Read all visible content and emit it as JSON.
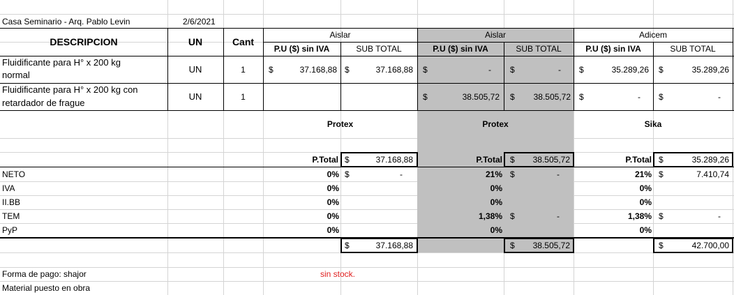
{
  "header": {
    "project": "Casa Seminario - Arq. Pablo Levin",
    "date": "2/6/2021"
  },
  "columns": {
    "descripcion": "DESCRIPCION",
    "un": "UN",
    "cant": "Cant",
    "pu": "P.U ($) sin IVA",
    "subtotal": "SUB TOTAL",
    "suppliers": [
      "Aislar",
      "Aislar",
      "Adicem"
    ]
  },
  "rows": [
    {
      "desc1": "Fluidificante para H° x 200 kg",
      "desc2": "normal",
      "un": "UN",
      "cant": "1",
      "s1_pu": "37.168,88",
      "s1_sub": "37.168,88",
      "s2_pu": "-",
      "s2_sub": "-",
      "s3_pu": "35.289,26",
      "s3_sub": "35.289,26"
    },
    {
      "desc1": "Fluidificante para H° x 200 kg con",
      "desc2": "retardador de frague",
      "un": "UN",
      "cant": "1",
      "s2_pu": "38.505,72",
      "s2_sub": "38.505,72",
      "s3_pu": "-",
      "s3_sub": "-"
    }
  ],
  "currency": "$",
  "brands": [
    "Protex",
    "Protex",
    "Sika"
  ],
  "ptotal_label": "P.Total",
  "ptotals": [
    "37.168,88",
    "38.505,72",
    "35.289,26"
  ],
  "taxes": {
    "labels": [
      "NETO",
      "IVA",
      "II.BB",
      "TEM",
      "PyP"
    ],
    "s1": {
      "pct": [
        "0%",
        "0%",
        "0%",
        "0%",
        "0%"
      ],
      "neto_amount": "-"
    },
    "s2": {
      "pct": [
        "21%",
        "0%",
        "0%",
        "1,38%",
        "0%"
      ],
      "neto_amount": "-",
      "tem_amount": "-"
    },
    "s3": {
      "pct": [
        "21%",
        "0%",
        "0%",
        "1,38%",
        "0%"
      ],
      "neto_amount": "7.410,74",
      "tem_amount": "-"
    }
  },
  "finals": [
    "37.168,88",
    "38.505,72",
    "42.700,00"
  ],
  "footer": {
    "payment": "Forma de pago: shajor",
    "stock": "sin stock.",
    "material": "Material puesto en obra"
  }
}
